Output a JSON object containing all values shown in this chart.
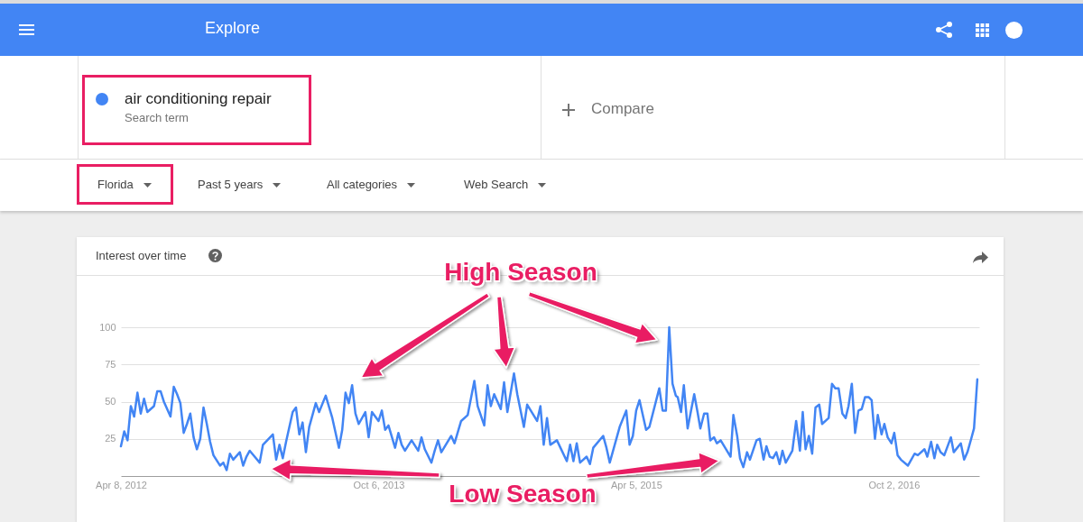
{
  "chart_data": {
    "type": "line",
    "title": "Interest over time",
    "annotations": [
      "Explore",
      "Search term",
      "Compare",
      "Florida",
      "Past 5 years",
      "All categories",
      "Web Search",
      "High Season",
      "Low Season"
    ],
    "x": [
      "2012-04-08",
      "2012-04-15",
      "2012-04-22",
      "2012-04-29",
      "2012-05-06",
      "2012-05-13",
      "2012-05-20",
      "2012-05-27",
      "2012-06-03",
      "2012-06-17",
      "2012-06-24",
      "2012-07-01",
      "2012-07-08",
      "2012-07-22",
      "2012-07-29",
      "2012-08-05",
      "2012-08-12",
      "2012-08-19",
      "2012-08-26",
      "2012-09-02",
      "2012-09-09",
      "2012-09-16",
      "2012-09-23",
      "2012-09-30",
      "2012-10-07",
      "2012-10-14",
      "2012-10-21",
      "2012-11-04",
      "2012-11-11",
      "2012-11-18",
      "2012-11-25",
      "2012-12-02",
      "2012-12-16",
      "2012-12-23",
      "2012-12-30",
      "2013-01-06",
      "2013-01-27",
      "2013-02-03",
      "2013-02-24",
      "2013-03-03",
      "2013-03-10",
      "2013-03-17",
      "2013-03-24",
      "2013-04-07",
      "2013-04-14",
      "2013-04-21",
      "2013-04-28",
      "2013-05-05",
      "2013-05-12",
      "2013-05-26",
      "2013-06-02",
      "2013-06-16",
      "2013-06-30",
      "2013-07-14",
      "2013-07-21",
      "2013-07-28",
      "2013-08-04",
      "2013-08-11",
      "2013-08-18",
      "2013-08-25",
      "2013-09-08",
      "2013-09-15",
      "2013-09-22",
      "2013-10-06",
      "2013-10-13",
      "2013-10-20",
      "2013-10-27",
      "2013-11-10",
      "2013-11-17",
      "2013-11-24",
      "2013-12-01",
      "2013-12-15",
      "2013-12-29",
      "2014-01-05",
      "2014-01-12",
      "2014-01-26",
      "2014-02-02",
      "2014-02-09",
      "2014-02-16",
      "2014-03-09",
      "2014-03-16",
      "2014-03-30",
      "2014-04-13",
      "2014-04-27",
      "2014-05-04",
      "2014-05-18",
      "2014-05-25",
      "2014-06-01",
      "2014-06-08",
      "2014-06-22",
      "2014-06-29",
      "2014-07-06",
      "2014-07-20",
      "2014-07-27",
      "2014-08-10",
      "2014-08-17",
      "2014-09-07",
      "2014-09-14",
      "2014-09-21",
      "2014-09-28",
      "2014-10-05",
      "2014-10-19",
      "2014-11-09",
      "2014-11-16",
      "2014-11-23",
      "2014-11-30",
      "2014-12-07",
      "2014-12-21",
      "2014-12-28",
      "2015-01-04",
      "2015-01-25",
      "2015-02-01",
      "2015-02-08",
      "2015-03-01",
      "2015-03-15",
      "2015-03-22",
      "2015-03-29",
      "2015-04-05",
      "2015-04-12",
      "2015-04-26",
      "2015-05-03",
      "2015-05-24",
      "2015-05-31",
      "2015-06-07",
      "2015-06-14",
      "2015-06-21",
      "2015-06-28",
      "2015-07-02",
      "2015-07-09",
      "2015-07-15",
      "2015-07-23",
      "2015-08-06",
      "2015-08-13",
      "2015-08-19",
      "2015-08-27",
      "2015-09-03",
      "2015-09-09",
      "2015-09-17",
      "2015-09-23",
      "2015-10-01",
      "2015-10-22",
      "2015-10-28",
      "2015-11-05",
      "2015-11-11",
      "2015-11-18",
      "2015-11-26",
      "2015-12-02",
      "2015-12-16",
      "2015-12-23",
      "2015-12-31",
      "2016-01-06",
      "2016-01-13",
      "2016-01-20",
      "2016-01-27",
      "2016-02-03",
      "2016-02-09",
      "2016-02-16",
      "2016-03-01",
      "2016-03-09",
      "2016-03-17",
      "2016-03-23",
      "2016-03-29",
      "2016-04-05",
      "2016-04-12",
      "2016-04-19",
      "2016-04-27",
      "2016-05-03",
      "2016-05-17",
      "2016-05-24",
      "2016-05-31",
      "2016-06-07",
      "2016-06-15",
      "2016-06-22",
      "2016-06-28",
      "2016-07-05",
      "2016-07-12",
      "2016-07-19",
      "2016-07-26",
      "2016-08-02",
      "2016-08-10",
      "2016-08-16",
      "2016-08-23",
      "2016-08-29",
      "2016-09-06",
      "2016-09-12",
      "2016-09-19",
      "2016-09-27",
      "2016-10-03",
      "2016-10-10",
      "2016-10-17",
      "2016-11-01",
      "2016-11-15",
      "2016-11-22",
      "2016-12-06",
      "2016-12-12",
      "2016-12-20",
      "2016-12-27",
      "2017-01-02",
      "2017-01-09",
      "2017-01-17",
      "2017-01-31",
      "2017-02-06",
      "2017-02-21",
      "2017-02-28",
      "2017-03-07",
      "2017-03-15",
      "2017-03-21",
      "2017-03-28"
    ],
    "series": [
      {
        "name": "air conditioning repair",
        "color": "#4285f4",
        "values": [
          20,
          30,
          24,
          47,
          40,
          56,
          42,
          52,
          43,
          47,
          57,
          57,
          50,
          40,
          60,
          55,
          49,
          29,
          35,
          42,
          26,
          18,
          25,
          46,
          35,
          23,
          14,
          7,
          9,
          4,
          15,
          11,
          16,
          7,
          13,
          17,
          9,
          21,
          28,
          11,
          21,
          12,
          23,
          43,
          46,
          28,
          36,
          16,
          33,
          49,
          43,
          54,
          39,
          19,
          31,
          56,
          49,
          61,
          42,
          35,
          43,
          26,
          43,
          37,
          44,
          31,
          34,
          19,
          29,
          21,
          17,
          24,
          17,
          26,
          18,
          9,
          17,
          24,
          16,
          27,
          22,
          37,
          41,
          64,
          47,
          34,
          61,
          47,
          55,
          45,
          63,
          43,
          69,
          55,
          33,
          48,
          37,
          47,
          21,
          39,
          21,
          24,
          10,
          21,
          10,
          22,
          9,
          13,
          8,
          19,
          27,
          19,
          9,
          33,
          44,
          21,
          27,
          44,
          51,
          31,
          33,
          59,
          44,
          44,
          100,
          62,
          54,
          53,
          43,
          61,
          32,
          55,
          43,
          32,
          42,
          42,
          24,
          26,
          22,
          24,
          13,
          41,
          27,
          12,
          6,
          16,
          11,
          24,
          25,
          11,
          20,
          13,
          12,
          16,
          8,
          17,
          9,
          17,
          37,
          17,
          43,
          18,
          27,
          15,
          46,
          48,
          35,
          39,
          62,
          59,
          59,
          42,
          39,
          47,
          62,
          29,
          44,
          45,
          53,
          53,
          51,
          25,
          41,
          28,
          35,
          26,
          22,
          29,
          14,
          11,
          7,
          15,
          14,
          18,
          13,
          23,
          12,
          21,
          16,
          14,
          26,
          16,
          22,
          11,
          16,
          25,
          32,
          65
        ]
      }
    ],
    "xlim": [
      "2012-04-08",
      "2017-04-01"
    ],
    "xticks": [
      {
        "value": "2012-04-08",
        "label": "Apr 8, 2012"
      },
      {
        "value": "2013-10-06",
        "label": "Oct 6, 2013"
      },
      {
        "value": "2015-04-05",
        "label": "Apr 5, 2015"
      },
      {
        "value": "2016-10-02",
        "label": "Oct 2, 2016"
      }
    ],
    "ylim": [
      0,
      100
    ],
    "yticks": [
      25,
      50,
      75,
      100
    ],
    "grid": "y",
    "legend": "top left"
  }
}
